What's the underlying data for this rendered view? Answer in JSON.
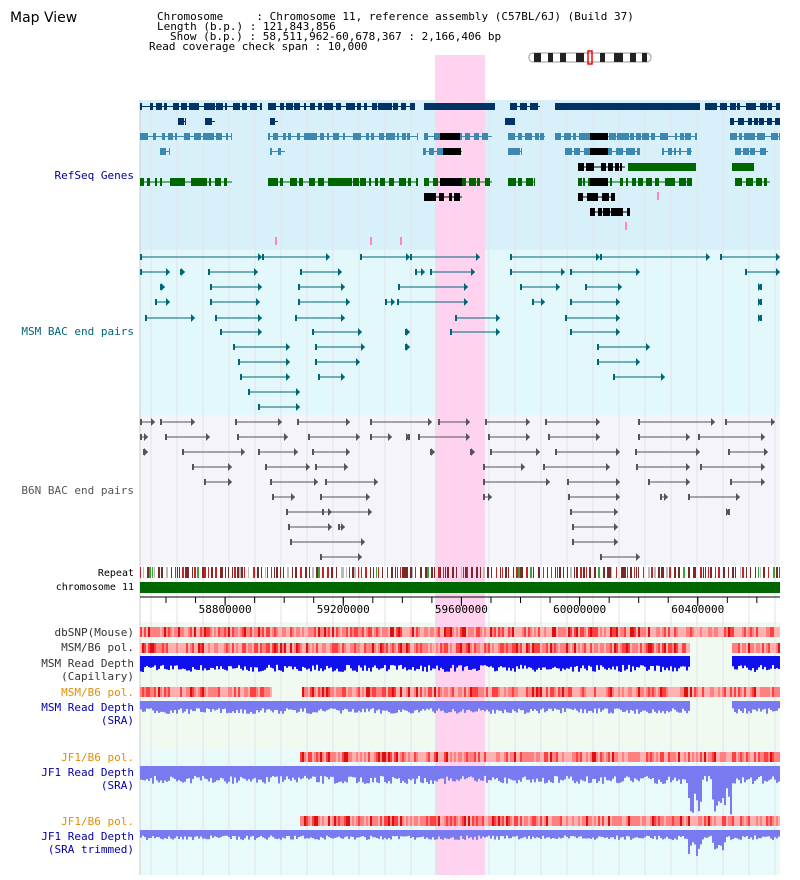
{
  "title": "Map View",
  "info": {
    "line1": "Chromosome     : Chromosome 11, reference assembly (C57BL/6J) (Build 37)",
    "line2": "Length (b.p.) : 121,843,856",
    "line3": "Show (b.p.) : 58,511,962-60,678,367 : 2,166,406 bp",
    "line4": "Read coverage check span : 10,000"
  },
  "tracks": {
    "refseq": "RefSeq Genes",
    "msm_bac": "MSM BAC end pairs",
    "b6n_bac": "B6N BAC end pairs",
    "repeat": "Repeat",
    "chromosome": "chromosome 11",
    "dbsnp": "dbSNP(Mouse)",
    "msm_pol1": "MSM/B6 pol.",
    "msm_depth_cap_1": "MSM Read Depth",
    "msm_depth_cap_2": "(Capillary)",
    "msm_pol2": "MSM/B6 pol.",
    "msm_depth_sra_1": "MSM Read Depth",
    "msm_depth_sra_2": "(SRA)",
    "jf1_pol1": "JF1/B6 pol.",
    "jf1_depth_sra_1": "JF1 Read Depth",
    "jf1_depth_sra_2": "(SRA)",
    "jf1_pol2": "JF1/B6 pol.",
    "jf1_depth_trim_1": "JF1 Read Depth",
    "jf1_depth_trim_2": "(SRA trimmed)"
  },
  "axis": {
    "ticks": [
      {
        "value": 58800000,
        "label": "58800000"
      },
      {
        "value": 59200000,
        "label": "59200000"
      },
      {
        "value": 59600000,
        "label": "59600000"
      },
      {
        "value": 60000000,
        "label": "60000000"
      },
      {
        "value": 60400000,
        "label": "60400000"
      }
    ],
    "start": 58511962,
    "end": 60678367
  },
  "colors": {
    "title": "#000000",
    "refseq_label": "#000099",
    "msm_label": "#006677",
    "b6n_label": "#555555",
    "pol_label_orange": "#e09000",
    "depth_label_blue": "#0000aa",
    "refseq_bg": "#d8f0fa",
    "msm_bg": "#e2f8fa",
    "b6n_bg": "#f4f4fa",
    "highlight": "#ffd2f0",
    "gene_dark": "#003366",
    "gene_mid": "#3b88b0",
    "gene_green": "#006600",
    "msm_line": "#006677",
    "b6n_line": "#555555",
    "chrom_green": "#006600",
    "depth_dark_blue": "#1010ee",
    "depth_light_blue": "#7a7af0"
  }
}
